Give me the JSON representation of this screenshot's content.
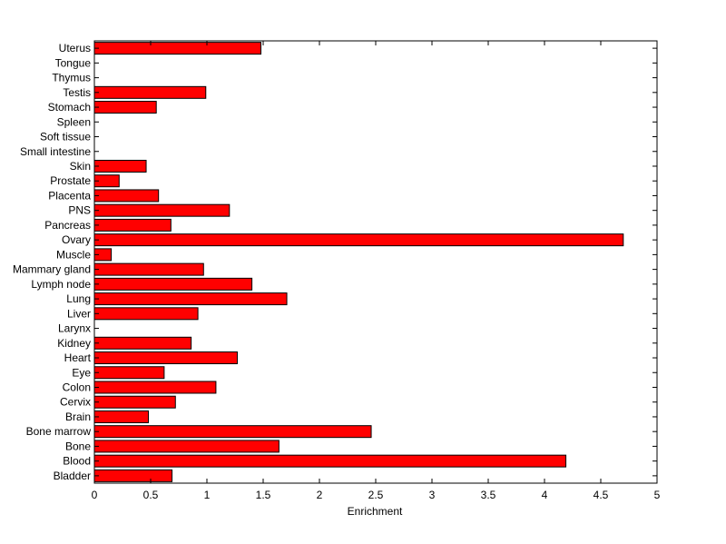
{
  "chart_data": {
    "type": "bar",
    "orientation": "horizontal",
    "title": "",
    "xlabel": "Enrichment",
    "ylabel": "",
    "xlim": [
      0,
      5
    ],
    "x_ticks": [
      "0",
      "0.5",
      "1",
      "1.5",
      "2",
      "2.5",
      "3",
      "3.5",
      "4",
      "4.5",
      "5"
    ],
    "grid": false,
    "legend": "none",
    "bar_color": "#ff0000",
    "categories": [
      "Uterus",
      "Tongue",
      "Thymus",
      "Testis",
      "Stomach",
      "Spleen",
      "Soft tissue",
      "Small intestine",
      "Skin",
      "Prostate",
      "Placenta",
      "PNS",
      "Pancreas",
      "Ovary",
      "Muscle",
      "Mammary gland",
      "Lymph node",
      "Lung",
      "Liver",
      "Larynx",
      "Kidney",
      "Heart",
      "Eye",
      "Colon",
      "Cervix",
      "Brain",
      "Bone marrow",
      "Bone",
      "Blood",
      "Bladder"
    ],
    "values": [
      1.48,
      0,
      0,
      0.99,
      0.55,
      0,
      0,
      0,
      0.46,
      0.22,
      0.57,
      1.2,
      0.68,
      4.7,
      0.15,
      0.97,
      1.4,
      1.71,
      0.92,
      0,
      0.86,
      1.27,
      0.62,
      1.08,
      0.72,
      0.48,
      2.46,
      1.64,
      4.19,
      0.69
    ]
  }
}
